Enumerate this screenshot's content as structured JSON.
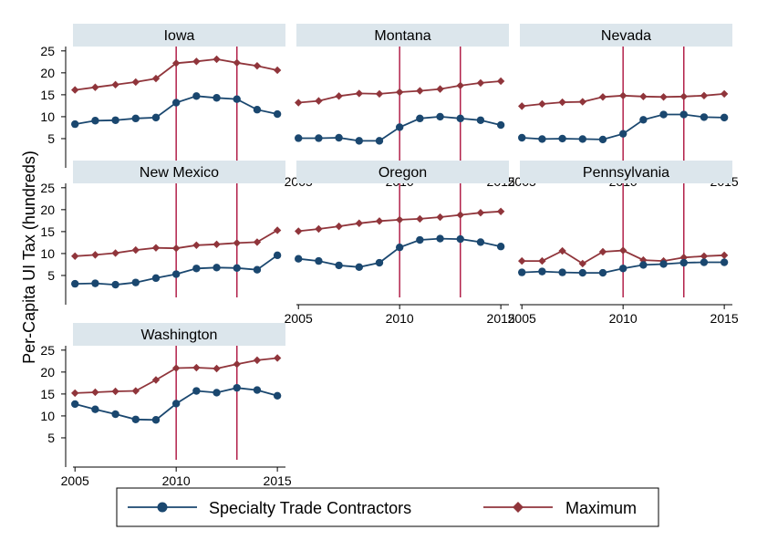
{
  "chart_data": {
    "type": "line",
    "ylabel": "Per-Capita UI Tax (hundreds)",
    "x_ticks": [
      2005,
      2010,
      2015
    ],
    "y_ticks": [
      5,
      10,
      15,
      20,
      25
    ],
    "y_tick_labels": [
      "5",
      "10",
      "15",
      "20",
      "25"
    ],
    "xlim": [
      2004.9,
      2015.4
    ],
    "ylim": [
      0,
      26
    ],
    "vlines": [
      2010,
      2013
    ],
    "legend": [
      "Specialty Trade Contractors",
      "Maximum"
    ],
    "series_colors": {
      "stc": "#1a476f",
      "max": "#90353b",
      "vline": "#b2204a",
      "strip": "#dce6ec"
    },
    "x": [
      2005,
      2006,
      2007,
      2008,
      2009,
      2010,
      2011,
      2012,
      2013,
      2014,
      2015
    ],
    "panels": [
      {
        "name": "Iowa",
        "stc": [
          8.3,
          9.1,
          9.2,
          9.6,
          9.8,
          13.2,
          14.7,
          14.3,
          14.0,
          11.6,
          10.6
        ],
        "max": [
          16.1,
          16.7,
          17.3,
          17.9,
          18.7,
          22.2,
          22.6,
          23.1,
          22.3,
          21.6,
          20.6
        ]
      },
      {
        "name": "Montana",
        "stc": [
          5.1,
          5.1,
          5.2,
          4.5,
          4.5,
          7.6,
          9.6,
          10.0,
          9.6,
          9.2,
          8.1
        ],
        "max": [
          13.2,
          13.6,
          14.7,
          15.3,
          15.2,
          15.6,
          15.9,
          16.3,
          17.1,
          17.7,
          18.1
        ]
      },
      {
        "name": "Nevada",
        "stc": [
          5.2,
          4.9,
          5.0,
          4.9,
          4.8,
          6.1,
          9.3,
          10.5,
          10.5,
          9.9,
          9.8
        ],
        "max": [
          12.4,
          12.9,
          13.3,
          13.4,
          14.5,
          14.8,
          14.6,
          14.5,
          14.6,
          14.8,
          15.2
        ]
      },
      {
        "name": "New Mexico",
        "stc": [
          3.1,
          3.2,
          2.9,
          3.4,
          4.4,
          5.3,
          6.6,
          6.8,
          6.7,
          6.3,
          9.6
        ],
        "max": [
          9.4,
          9.7,
          10.1,
          10.8,
          11.3,
          11.2,
          11.9,
          12.1,
          12.4,
          12.6,
          15.3
        ]
      },
      {
        "name": "Oregon",
        "stc": [
          8.8,
          8.3,
          7.3,
          6.9,
          7.9,
          11.4,
          13.1,
          13.4,
          13.3,
          12.6,
          11.6
        ],
        "max": [
          15.1,
          15.6,
          16.2,
          16.9,
          17.4,
          17.7,
          17.9,
          18.3,
          18.8,
          19.3,
          19.6
        ]
      },
      {
        "name": "Pennsylvania",
        "stc": [
          5.7,
          5.9,
          5.7,
          5.6,
          5.6,
          6.6,
          7.4,
          7.6,
          7.9,
          8.0,
          8.0
        ],
        "max": [
          8.3,
          8.3,
          10.6,
          7.7,
          10.4,
          10.7,
          8.5,
          8.3,
          9.1,
          9.4,
          9.6
        ]
      },
      {
        "name": "Washington",
        "stc": [
          12.7,
          11.5,
          10.4,
          9.2,
          9.1,
          12.8,
          15.7,
          15.3,
          16.4,
          15.9,
          14.6
        ],
        "max": [
          15.2,
          15.4,
          15.6,
          15.7,
          18.2,
          20.9,
          21.0,
          20.8,
          21.8,
          22.7,
          23.2
        ]
      }
    ]
  }
}
